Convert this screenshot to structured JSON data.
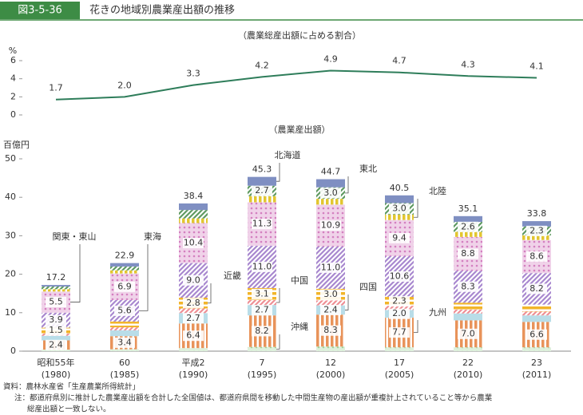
{
  "header": {
    "figure": "図3-5-36",
    "title": "花きの地域別農業産出額の推移"
  },
  "chart_data": [
    {
      "type": "line",
      "title": "（農業総産出額に占める割合）",
      "y_unit": "%",
      "color": "#2e7d5a",
      "values": [
        1.7,
        2.0,
        3.3,
        4.2,
        4.9,
        4.7,
        4.3,
        4.1
      ],
      "value_labels": [
        "1.7",
        "2.0",
        "3.3",
        "4.2",
        "4.9",
        "4.7",
        "4.3",
        "4.1"
      ],
      "ylim": [
        0,
        6
      ],
      "yticks": [
        0,
        2,
        4,
        6
      ]
    },
    {
      "type": "stacked_bar",
      "title": "（農業産出額）",
      "y_unit": "百億円",
      "categories": [
        [
          "昭和55年",
          "(1980)"
        ],
        [
          "60",
          "(1985)"
        ],
        [
          "平成2",
          "(1990)"
        ],
        [
          "7",
          "(1995)"
        ],
        [
          "12",
          "(2000)"
        ],
        [
          "17",
          "(2005)"
        ],
        [
          "22",
          "(2010)"
        ],
        [
          "23",
          "(2011)"
        ]
      ],
      "ylim": [
        0,
        50
      ],
      "yticks": [
        0,
        10,
        20,
        30,
        40,
        50
      ],
      "totals": [
        17.2,
        22.9,
        38.4,
        45.3,
        44.7,
        40.5,
        35.1,
        33.8
      ],
      "series": [
        {
          "name": "沖縄",
          "color": "#9fd39a",
          "values": [
            0.4,
            0.5,
            0.8,
            1.1,
            1.2,
            1.0,
            1.0,
            1.0
          ],
          "value_labels": [
            null,
            null,
            null,
            null,
            null,
            null,
            null,
            null
          ]
        },
        {
          "name": "九州",
          "color": "#e8935a",
          "values": [
            2.4,
            3.4,
            6.4,
            8.2,
            8.3,
            7.7,
            7.0,
            6.6
          ],
          "value_labels": [
            "2.4",
            "3.4",
            "6.4",
            "8.2",
            "8.3",
            "7.7",
            "7.0",
            "6.6"
          ]
        },
        {
          "name": "四国",
          "color": "#b9dde8",
          "values": [
            1.2,
            1.5,
            2.7,
            2.7,
            2.4,
            2.0,
            1.8,
            1.7
          ],
          "value_labels": [
            null,
            null,
            "2.7",
            "2.7",
            "2.4",
            "2.0",
            null,
            null
          ]
        },
        {
          "name": "中国",
          "color": "#ee8f95",
          "values": [
            0.6,
            0.8,
            1.2,
            1.3,
            1.3,
            1.1,
            1.0,
            1.0
          ],
          "value_labels": [
            null,
            null,
            null,
            null,
            null,
            null,
            null,
            null
          ]
        },
        {
          "name": "近畿",
          "color": "#f2b52a",
          "values": [
            1.5,
            1.5,
            2.8,
            3.1,
            3.0,
            2.3,
            1.8,
            1.8
          ],
          "value_labels": [
            "1.5",
            null,
            "2.8",
            "3.1",
            "3.0",
            "2.3",
            null,
            null
          ]
        },
        {
          "name": "東海",
          "color": "#a888cf",
          "values": [
            3.9,
            5.6,
            9.0,
            11.0,
            11.0,
            10.6,
            8.3,
            8.2
          ],
          "value_labels": [
            "3.9",
            "5.6",
            "9.0",
            "11.0",
            "11.0",
            "10.6",
            "8.3",
            "8.2"
          ]
        },
        {
          "name": "関東・東山",
          "color": "#d47fc0",
          "values": [
            5.5,
            6.9,
            10.4,
            11.3,
            10.9,
            9.4,
            8.8,
            8.6
          ],
          "value_labels": [
            "5.5",
            "6.9",
            "10.4",
            "11.3",
            "10.9",
            "9.4",
            "8.8",
            "8.6"
          ]
        },
        {
          "name": "北陸",
          "color": "#e2c630",
          "values": [
            0.6,
            0.8,
            1.2,
            1.6,
            1.5,
            1.4,
            1.3,
            1.2
          ],
          "value_labels": [
            null,
            null,
            null,
            null,
            null,
            null,
            null,
            null
          ]
        },
        {
          "name": "東北",
          "color": "#5f9a62",
          "values": [
            0.7,
            1.0,
            2.2,
            2.7,
            3.0,
            3.0,
            2.6,
            2.3
          ],
          "value_labels": [
            null,
            null,
            null,
            "2.7",
            "3.0",
            "3.0",
            "2.6",
            "2.3"
          ]
        },
        {
          "name": "北海道",
          "color": "#7f8fc2",
          "values": [
            0.4,
            0.9,
            1.7,
            2.3,
            2.1,
            2.0,
            1.5,
            1.4
          ],
          "value_labels": [
            null,
            null,
            null,
            null,
            null,
            null,
            null,
            null
          ]
        }
      ]
    }
  ],
  "footer": {
    "source": "資料：農林水産省「生産農業所得統計」",
    "note": [
      "注：都道府県別に推計した農業産出額を合計した全国値は、都道府県間を移動した中間生産物の産出額が重複計上されていること等から農業",
      "総産出額と一致しない。"
    ]
  }
}
